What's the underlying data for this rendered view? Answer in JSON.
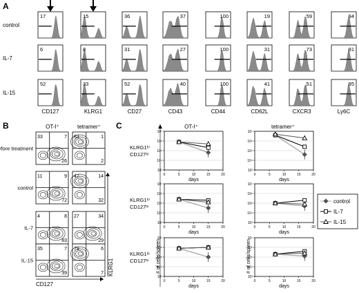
{
  "panels": {
    "a": "A",
    "b": "B",
    "c": "C"
  },
  "panel_a": {
    "rows": [
      "control",
      "IL-7",
      "IL-15"
    ],
    "markers": [
      "CD127",
      "KLRG1",
      "CD27",
      "CD43",
      "CD44",
      "CD62L",
      "CXCR3",
      "Ly6C"
    ],
    "arrow_markers": [
      "CD127",
      "KLRG1"
    ],
    "values": [
      [
        "17",
        "15",
        "36",
        "37",
        "100",
        "19",
        "59",
        "94"
      ],
      [
        "6",
        "8",
        "31",
        "27",
        "100",
        "31",
        "73",
        "91"
      ],
      [
        "52",
        "33",
        "52",
        "40",
        "100",
        "41",
        "51",
        "95"
      ]
    ]
  },
  "panel_b": {
    "columns": [
      "OT-I⁺",
      "tetramer⁺"
    ],
    "rows": [
      "before treatment",
      "control",
      "IL-7",
      "IL-15"
    ],
    "x_axis": "CD127",
    "y_axis": "KLRG1",
    "quadrants": [
      [
        [
          "33",
          "7",
          "",
          "26"
        ],
        [
          "83",
          "1",
          "",
          "2"
        ]
      ],
      [
        [
          "11",
          "9",
          "",
          "72"
        ],
        [
          "47",
          "14",
          "",
          "32"
        ]
      ],
      [
        [
          "4",
          "8",
          "",
          "83"
        ],
        [
          "27",
          "34",
          "",
          "29"
        ]
      ],
      [
        [
          "35",
          "7",
          "",
          "39"
        ],
        [
          "79",
          "6",
          "",
          "7"
        ]
      ]
    ]
  },
  "panel_c": {
    "columns": [
      "OT-I⁺",
      "tetramer⁺"
    ],
    "row_labels": [
      [
        "KLRG1ʰⁱ",
        "CD127ˡᵒ"
      ],
      [
        "KLRG1ʰⁱ",
        "CD127ʰⁱ"
      ],
      [
        "KLRG1ˡᵒ",
        "CD127ʰⁱ"
      ]
    ],
    "x_label": "days",
    "y_label": "# of cells/spleen",
    "x_ticks": [
      "0",
      "5",
      "10",
      "15",
      "20"
    ],
    "y_ticks": [
      "10³",
      "10⁴",
      "10⁵",
      "10⁶",
      "10⁷"
    ],
    "legend": [
      "control",
      "IL-7",
      "IL-15"
    ]
  },
  "chart_data": [
    {
      "type": "line",
      "title": "OT-I⁺ KLRG1hi CD127lo",
      "xlabel": "days",
      "ylabel": "# of cells/spleen",
      "xlim": [
        0,
        20
      ],
      "ylim_log10": [
        3,
        7
      ],
      "series": [
        {
          "name": "control",
          "x": [
            5,
            15
          ],
          "y_log10": [
            5.9,
            4.8
          ]
        },
        {
          "name": "IL-7",
          "x": [
            5,
            15
          ],
          "y_log10": [
            5.9,
            5.3
          ]
        },
        {
          "name": "IL-15",
          "x": [
            5,
            15
          ],
          "y_log10": [
            5.9,
            5.7
          ]
        }
      ]
    },
    {
      "type": "line",
      "title": "tetramer⁺ KLRG1hi CD127lo",
      "xlabel": "days",
      "ylabel": "# of cells/spleen",
      "xlim": [
        0,
        20
      ],
      "ylim_log10": [
        3,
        7
      ],
      "series": [
        {
          "name": "control",
          "x": [
            7,
            17
          ],
          "y_log10": [
            6.6,
            4.6
          ]
        },
        {
          "name": "IL-7",
          "x": [
            7,
            17
          ],
          "y_log10": [
            6.6,
            5.4
          ]
        },
        {
          "name": "IL-15",
          "x": [
            7,
            17
          ],
          "y_log10": [
            6.7,
            6.3
          ]
        }
      ]
    },
    {
      "type": "line",
      "title": "OT-I⁺ KLRG1hi CD127hi",
      "xlabel": "days",
      "ylabel": "# of cells/spleen",
      "xlim": [
        0,
        20
      ],
      "ylim_log10": [
        3,
        7
      ],
      "series": [
        {
          "name": "control",
          "x": [
            5,
            15
          ],
          "y_log10": [
            5.4,
            4.5
          ]
        },
        {
          "name": "IL-7",
          "x": [
            5,
            15
          ],
          "y_log10": [
            5.4,
            5.3
          ]
        },
        {
          "name": "IL-15",
          "x": [
            5,
            15
          ],
          "y_log10": [
            5.4,
            5.1
          ]
        }
      ]
    },
    {
      "type": "line",
      "title": "tetramer⁺ KLRG1hi CD127hi",
      "xlabel": "days",
      "ylabel": "# of cells/spleen",
      "xlim": [
        0,
        20
      ],
      "ylim_log10": [
        3,
        7
      ],
      "series": [
        {
          "name": "control",
          "x": [
            7,
            17
          ],
          "y_log10": [
            5.0,
            4.7
          ]
        },
        {
          "name": "IL-7",
          "x": [
            7,
            17
          ],
          "y_log10": [
            5.0,
            5.3
          ]
        },
        {
          "name": "IL-15",
          "x": [
            7,
            17
          ],
          "y_log10": [
            5.0,
            4.9
          ]
        }
      ]
    },
    {
      "type": "line",
      "title": "OT-I⁺ KLRG1lo CD127hi",
      "xlabel": "days",
      "ylabel": "# of cells/spleen",
      "xlim": [
        0,
        20
      ],
      "ylim_log10": [
        3,
        7
      ],
      "series": [
        {
          "name": "control",
          "x": [
            5,
            15
          ],
          "y_log10": [
            5.9,
            5.0
          ]
        },
        {
          "name": "IL-7",
          "x": [
            5,
            15
          ],
          "y_log10": [
            5.9,
            6.0
          ]
        },
        {
          "name": "IL-15",
          "x": [
            5,
            15
          ],
          "y_log10": [
            5.9,
            6.0
          ]
        }
      ]
    },
    {
      "type": "line",
      "title": "tetramer⁺ KLRG1lo CD127hi",
      "xlabel": "days",
      "ylabel": "# of cells/spleen",
      "xlim": [
        0,
        20
      ],
      "ylim_log10": [
        3,
        7
      ],
      "series": [
        {
          "name": "control",
          "x": [
            7,
            17
          ],
          "y_log10": [
            5.3,
            5.1
          ]
        },
        {
          "name": "IL-7",
          "x": [
            7,
            17
          ],
          "y_log10": [
            5.3,
            5.6
          ]
        },
        {
          "name": "IL-15",
          "x": [
            7,
            17
          ],
          "y_log10": [
            5.3,
            5.4
          ]
        }
      ]
    }
  ]
}
